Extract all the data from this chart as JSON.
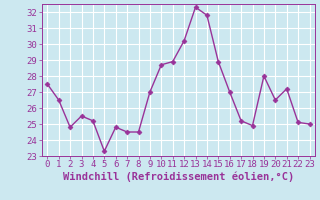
{
  "x": [
    0,
    1,
    2,
    3,
    4,
    5,
    6,
    7,
    8,
    9,
    10,
    11,
    12,
    13,
    14,
    15,
    16,
    17,
    18,
    19,
    20,
    21,
    22,
    23
  ],
  "y": [
    27.5,
    26.5,
    24.8,
    25.5,
    25.2,
    23.3,
    24.8,
    24.5,
    24.5,
    27.0,
    28.7,
    28.9,
    30.2,
    32.3,
    31.8,
    28.9,
    27.0,
    25.2,
    24.9,
    28.0,
    26.5,
    27.2,
    25.1,
    25.0
  ],
  "line_color": "#993399",
  "marker": "D",
  "marker_size": 2.5,
  "line_width": 1.0,
  "bg_color": "#cce8f0",
  "grid_color": "#ffffff",
  "tick_color": "#993399",
  "label_color": "#993399",
  "xlabel": "Windchill (Refroidissement éolien,°C)",
  "xlim": [
    -0.5,
    23.5
  ],
  "ylim": [
    23.0,
    32.5
  ],
  "yticks": [
    23,
    24,
    25,
    26,
    27,
    28,
    29,
    30,
    31,
    32
  ],
  "xticks": [
    0,
    1,
    2,
    3,
    4,
    5,
    6,
    7,
    8,
    9,
    10,
    11,
    12,
    13,
    14,
    15,
    16,
    17,
    18,
    19,
    20,
    21,
    22,
    23
  ],
  "tick_fontsize": 6.5,
  "xlabel_fontsize": 7.5
}
